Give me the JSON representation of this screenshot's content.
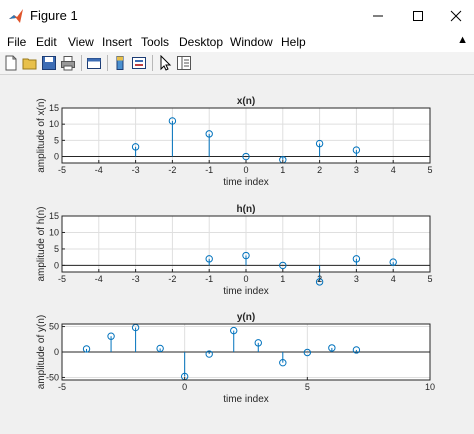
{
  "window": {
    "title": "Figure 1"
  },
  "menu": [
    "File",
    "Edit",
    "View",
    "Insert",
    "Tools",
    "Desktop",
    "Window",
    "Help"
  ],
  "menu_overflow_glyph": "▲",
  "colors": {
    "stem": "#0072bd",
    "baseline": "#262626",
    "grid": "#dfdfdf",
    "axes_bg": "#ffffff"
  },
  "toolbar_icons": [
    "new-figure-icon",
    "open-file-icon",
    "save-icon",
    "print-icon",
    "link-plot-icon",
    "insert-colorbar-icon",
    "insert-legend-icon",
    "edit-plot-icon",
    "property-inspector-icon"
  ],
  "chart_data": [
    {
      "type": "stem",
      "title": "x(n)",
      "xlabel": "time index",
      "ylabel": "amplitude of x(n)",
      "xlim": [
        -5,
        5
      ],
      "ylim": [
        -2,
        15
      ],
      "xticks": [
        -5,
        -4,
        -3,
        -2,
        -1,
        0,
        1,
        2,
        3,
        4,
        5
      ],
      "yticks": [
        0,
        5,
        10,
        15
      ],
      "x": [
        -3,
        -2,
        -1,
        0,
        1,
        2,
        3
      ],
      "y": [
        3,
        11,
        7,
        0,
        -1,
        4,
        2
      ],
      "grid": true
    },
    {
      "type": "stem",
      "title": "h(n)",
      "xlabel": "time index",
      "ylabel": "amplitude of h(n)",
      "xlim": [
        -5,
        5
      ],
      "ylim": [
        -2,
        15
      ],
      "xticks": [
        -5,
        -4,
        -3,
        -2,
        -1,
        0,
        1,
        2,
        3,
        4,
        5
      ],
      "yticks": [
        0,
        5,
        10,
        15
      ],
      "x": [
        -1,
        0,
        1,
        2,
        3,
        4
      ],
      "y": [
        2,
        3,
        0,
        -5,
        2,
        1
      ],
      "grid": true
    },
    {
      "type": "stem",
      "title": "y(n)",
      "xlabel": "time index",
      "ylabel": "amplitude of y(n)",
      "xlim": [
        -5,
        10
      ],
      "ylim": [
        -55,
        55
      ],
      "xticks": [
        -5,
        0,
        5,
        10
      ],
      "yticks": [
        -50,
        0,
        50
      ],
      "x": [
        -4,
        -3,
        -2,
        -1,
        0,
        1,
        2,
        3,
        4,
        5,
        6,
        7
      ],
      "y": [
        6,
        31,
        48,
        7,
        -48,
        -4,
        42,
        18,
        -21,
        -1,
        8,
        4
      ],
      "grid": true
    }
  ]
}
